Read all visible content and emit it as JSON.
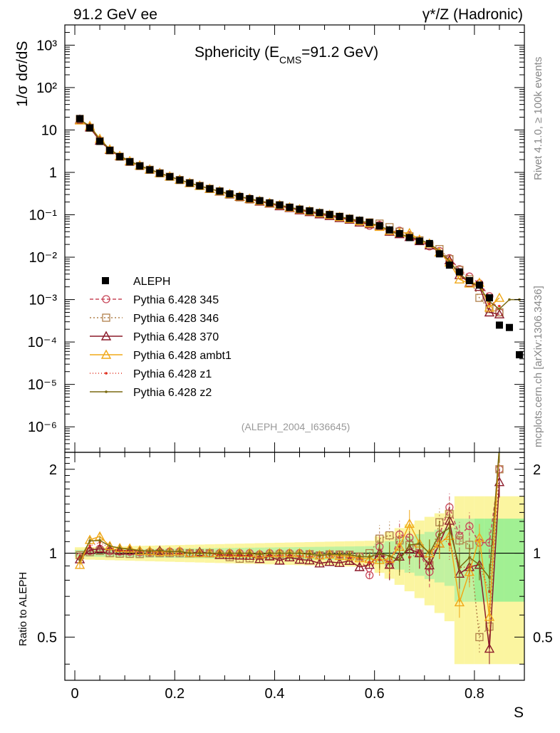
{
  "header": {
    "left": "91.2 GeV ee",
    "right": "γ*/Z (Hadronic)"
  },
  "sidebar": {
    "rivet": "Rivet 4.1.0, ≥ 100k events",
    "mcplots": "mcplots.cern.ch [arXiv:1306.3436]"
  },
  "chart_data": {
    "type": "line",
    "title": "Sphericity (E_CMS=91.2 GeV)",
    "title_parts": {
      "pre": "Sphericity (E",
      "sub": "CMS",
      "post": "=91.2 GeV)"
    },
    "xlabel": "S",
    "ylabel": "1/σ dσ/dS",
    "ratio_ylabel": "Ratio to ALEPH",
    "analysis": "(ALEPH_2004_I636645)",
    "xlim": [
      -0.02,
      0.9
    ],
    "ylim": [
      2.5e-07,
      3000
    ],
    "ratio_ylim": [
      0.35,
      2.3
    ],
    "x_ticks": [
      "0",
      "0.2",
      "0.4",
      "0.6",
      "0.8"
    ],
    "y_ticks": [
      "10³",
      "10²",
      "10",
      "1",
      "10⁻¹",
      "10⁻²",
      "10⁻³",
      "10⁻⁴",
      "10⁻⁵",
      "10⁻⁶"
    ],
    "ratio_ticks": [
      "0.5",
      "1",
      "2"
    ],
    "x": [
      0.01,
      0.03,
      0.05,
      0.07,
      0.09,
      0.11,
      0.13,
      0.15,
      0.17,
      0.19,
      0.21,
      0.23,
      0.25,
      0.27,
      0.29,
      0.31,
      0.33,
      0.35,
      0.37,
      0.39,
      0.41,
      0.43,
      0.45,
      0.47,
      0.49,
      0.51,
      0.53,
      0.55,
      0.57,
      0.59,
      0.61,
      0.63,
      0.65,
      0.67,
      0.69,
      0.71,
      0.73,
      0.75,
      0.77,
      0.79,
      0.81,
      0.83,
      0.85,
      0.87,
      0.89
    ],
    "data": {
      "name": "ALEPH",
      "values": [
        18.5,
        11.2,
        5.4,
        3.3,
        2.35,
        1.78,
        1.42,
        1.15,
        0.95,
        0.79,
        0.66,
        0.56,
        0.48,
        0.41,
        0.36,
        0.31,
        0.27,
        0.24,
        0.215,
        0.19,
        0.17,
        0.15,
        0.135,
        0.123,
        0.112,
        0.101,
        0.091,
        0.082,
        0.074,
        0.066,
        0.055,
        0.044,
        0.036,
        0.029,
        0.024,
        0.021,
        0.012,
        0.0065,
        0.0045,
        0.0028,
        0.0022,
        0.0011,
        0.00025,
        0.00022,
        5e-05
      ]
    },
    "series": [
      {
        "name": "Pythia 6.428 345",
        "color": "#c8485a",
        "dash": "5,3",
        "marker": "circle",
        "values": [
          18.0,
          11.4,
          5.6,
          3.35,
          2.38,
          1.8,
          1.43,
          1.16,
          0.96,
          0.8,
          0.67,
          0.56,
          0.48,
          0.41,
          0.36,
          0.31,
          0.27,
          0.24,
          0.213,
          0.19,
          0.17,
          0.15,
          0.135,
          0.122,
          0.11,
          0.1,
          0.09,
          0.081,
          0.072,
          0.055,
          0.058,
          0.04,
          0.042,
          0.033,
          0.024,
          0.018,
          0.014,
          0.0095,
          0.0052,
          0.0035,
          0.0024,
          0.0012,
          0.0005,
          null,
          null
        ]
      },
      {
        "name": "Pythia 6.428 346",
        "color": "#b0804a",
        "dash": "2,3",
        "marker": "square",
        "values": [
          18.2,
          11.3,
          5.5,
          3.3,
          2.34,
          1.77,
          1.41,
          1.15,
          0.95,
          0.79,
          0.66,
          0.56,
          0.48,
          0.41,
          0.355,
          0.3,
          0.258,
          0.23,
          0.21,
          0.186,
          0.168,
          0.148,
          0.133,
          0.122,
          0.11,
          0.1,
          0.09,
          0.081,
          0.072,
          0.066,
          0.062,
          0.051,
          0.04,
          0.031,
          0.025,
          0.019,
          0.0155,
          0.009,
          0.005,
          0.003,
          0.0011,
          0.0006,
          0.0005,
          null,
          null
        ]
      },
      {
        "name": "Pythia 6.428 370",
        "color": "#8b1a2a",
        "dash": "",
        "marker": "triangle",
        "values": [
          17.6,
          11.5,
          5.6,
          3.4,
          2.4,
          1.82,
          1.45,
          1.17,
          0.97,
          0.8,
          0.67,
          0.56,
          0.485,
          0.41,
          0.355,
          0.305,
          0.265,
          0.235,
          0.205,
          0.185,
          0.16,
          0.145,
          0.128,
          0.116,
          0.103,
          0.094,
          0.084,
          0.077,
          0.066,
          0.06,
          0.055,
          0.04,
          0.035,
          0.03,
          0.024,
          0.019,
          0.013,
          0.0085,
          0.0038,
          0.0025,
          0.002,
          0.0005,
          0.00045,
          null,
          null
        ]
      },
      {
        "name": "Pythia 6.428 ambt1",
        "color": "#f0a818",
        "dash": "",
        "marker": "triangle",
        "values": [
          16.8,
          12.5,
          6.2,
          3.5,
          2.45,
          1.85,
          1.45,
          1.17,
          0.96,
          0.8,
          0.67,
          0.56,
          0.48,
          0.41,
          0.36,
          0.31,
          0.27,
          0.24,
          0.213,
          0.19,
          0.17,
          0.15,
          0.135,
          0.122,
          0.11,
          0.1,
          0.089,
          0.08,
          0.071,
          0.063,
          0.052,
          0.042,
          0.038,
          0.037,
          0.026,
          0.021,
          0.013,
          0.0075,
          0.003,
          0.0024,
          0.0025,
          0.00065,
          0.0011,
          null,
          null
        ]
      },
      {
        "name": "Pythia 6.428 z1",
        "color": "#e03020",
        "dash": "1,3",
        "marker": "dot",
        "values": [
          17.9,
          11.9,
          5.9,
          3.45,
          2.4,
          1.82,
          1.44,
          1.16,
          0.96,
          0.79,
          0.66,
          0.56,
          0.48,
          0.41,
          0.355,
          0.305,
          0.265,
          0.235,
          0.21,
          0.186,
          0.167,
          0.148,
          0.132,
          0.12,
          0.109,
          0.099,
          0.088,
          0.079,
          0.071,
          0.061,
          0.052,
          0.041,
          0.038,
          0.028,
          0.024,
          0.02,
          0.014,
          0.007,
          0.004,
          0.0025,
          0.002,
          0.0008,
          0.0007,
          null,
          null
        ]
      },
      {
        "name": "Pythia 6.428 z2",
        "color": "#7a6a10",
        "dash": "",
        "marker": "dot",
        "values": [
          17.5,
          12.4,
          6.0,
          3.5,
          2.45,
          1.84,
          1.45,
          1.17,
          0.97,
          0.8,
          0.67,
          0.56,
          0.48,
          0.41,
          0.36,
          0.31,
          0.27,
          0.24,
          0.213,
          0.19,
          0.17,
          0.15,
          0.135,
          0.122,
          0.11,
          0.1,
          0.09,
          0.081,
          0.072,
          0.064,
          0.055,
          0.043,
          0.034,
          0.031,
          0.026,
          0.021,
          0.014,
          0.008,
          0.004,
          0.0027,
          0.002,
          0.0009,
          0.0006,
          0.001,
          0.001
        ]
      }
    ]
  }
}
